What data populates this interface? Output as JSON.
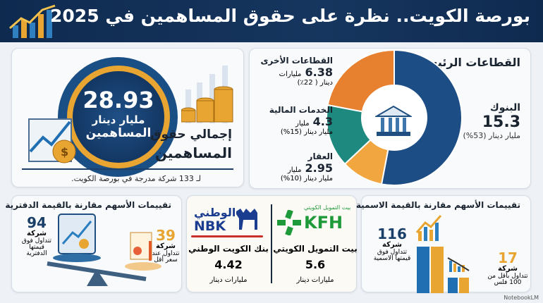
{
  "header": {
    "title": "بورصة الكويت.. نظرة على حقوق المساهمين في 2025"
  },
  "total": {
    "value": "28.93",
    "unit": "مليار دينار",
    "label_in_circle": "المساهمين",
    "heading_line1": "إجمالي حقوق",
    "heading_line2": "المساهمين",
    "note": "لـ 133 شركة مدرجة في بورصة الكويت."
  },
  "sectors": {
    "title": "القطاعات الرئيسية",
    "chart_data": {
      "type": "pie",
      "variant": "donut",
      "unit": "مليار دينار",
      "slices": [
        {
          "name": "البنوك",
          "value": 15.3,
          "percent": 53,
          "color": "#1c4d85",
          "value_text": "15.3",
          "detail": "مليار دينار (53%)"
        },
        {
          "name": "العقار",
          "value": 2.95,
          "percent": 10,
          "color": "#f2a640",
          "value_text": "2.95",
          "unit_text": "مليار",
          "detail": "مليار دينار (10%)"
        },
        {
          "name": "الخدمات المالية",
          "value": 4.3,
          "percent": 15,
          "color": "#1e8a7f",
          "value_text": "4.3",
          "unit_text": "مليار",
          "detail": "مليار دينار (15%)"
        },
        {
          "name": "القطاعات الأخرى",
          "value": 6.38,
          "percent": 22,
          "color": "#e8812f",
          "value_text": "6.38",
          "unit_text": "مليارات",
          "detail": "دينار ( 22٪)"
        }
      ]
    }
  },
  "book": {
    "title": "تقييمات الأسهم مقارنة بالقيمة الدفترية",
    "above": {
      "count": "94",
      "word": "شركة",
      "desc1": "تتداول فوق",
      "desc2": "قيمتها",
      "desc3": "الدفترية"
    },
    "below": {
      "count": "39",
      "word": "شركة",
      "desc1": "تتداول عند",
      "desc2": "سعر أقل"
    }
  },
  "banks": {
    "kfh": {
      "logo_ar": "بيت التمويل الكويتي",
      "logo_en": "KFH",
      "name": "بيت التمويل الكويتي",
      "value": "5.6",
      "unit": "مليارات دينار"
    },
    "nbk": {
      "logo_ar": "الوطني",
      "logo_en": "NBK",
      "name": "بنك الكويت الوطني",
      "value": "4.42",
      "unit": "مليارات دينار"
    }
  },
  "nominal": {
    "title": "تقييمات الأسهم مقارنة بالقيمة الاسمية",
    "above": {
      "count": "116",
      "word": "شركة",
      "desc1": "تتداول فوق",
      "desc2": "قيمتها الاسمية"
    },
    "below": {
      "count": "17",
      "word": "شركة",
      "desc1": "تتداول بأقل من",
      "desc2": "100 فلس"
    }
  },
  "watermark": "NotebookLM",
  "colors": {
    "navy": "#14335a",
    "gold": "#e8a531",
    "teal": "#1e8a7f",
    "orange": "#e8812f",
    "kfh_green": "#1f9a3a",
    "nbk_blue": "#1b3d8f"
  }
}
